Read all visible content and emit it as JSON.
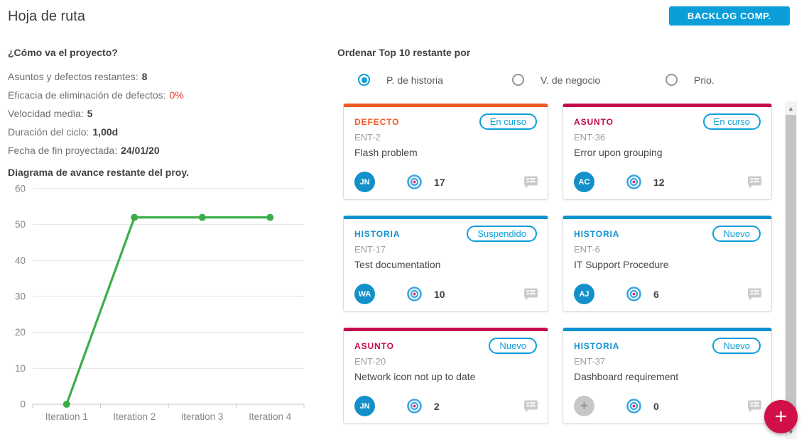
{
  "page": {
    "title": "Hoja de ruta"
  },
  "header": {
    "backlog_button": "BACKLOG COMP."
  },
  "status_panel": {
    "heading": "¿Cómo va el proyecto?",
    "stats": [
      {
        "label": "Asuntos y defectos restantes:",
        "value": "8",
        "warning": false
      },
      {
        "label": "Eficacia de eliminación de defectos:",
        "value": "0%",
        "warning": true
      },
      {
        "label": "Velocidad media:",
        "value": "5",
        "warning": false
      },
      {
        "label": "Duración del ciclo:",
        "value": "1,00d",
        "warning": false
      },
      {
        "label": "Fecha de fin proyectada:",
        "value": "24/01/20",
        "warning": false
      }
    ]
  },
  "chart_data": {
    "type": "line",
    "title": "Diagrama de avance restante del proy.",
    "categories": [
      "Iteration 1",
      "Iteration 2",
      "iteration 3",
      "Iteration 4"
    ],
    "values": [
      0,
      52,
      52,
      52
    ],
    "xlabel": "",
    "ylabel": "",
    "ylim": [
      0,
      60
    ],
    "ytick_step": 10,
    "grid": true,
    "legend": false,
    "line_color": "#3aae49",
    "marker": "circle"
  },
  "sort_panel": {
    "heading": "Ordenar Top 10 restante por",
    "options": [
      {
        "label": "P. de historia",
        "selected": true
      },
      {
        "label": "V. de negocio",
        "selected": false
      },
      {
        "label": "Prio.",
        "selected": false
      }
    ]
  },
  "cards": [
    {
      "type": "DEFECTO",
      "type_color": "#f05a28",
      "key": "ENT-2",
      "title": "Flash problem",
      "status": "En curso",
      "avatar": "JN",
      "avatar_type": "user",
      "points": "17"
    },
    {
      "type": "ASUNTO",
      "type_color": "#c50b50",
      "key": "ENT-36",
      "title": "Error upon grouping",
      "status": "En curso",
      "avatar": "AC",
      "avatar_type": "user",
      "points": "12"
    },
    {
      "type": "HISTORIA",
      "type_color": "#1191cd",
      "key": "ENT-17",
      "title": "Test documentation",
      "status": "Suspendido",
      "avatar": "WA",
      "avatar_type": "user",
      "points": "10"
    },
    {
      "type": "HISTORIA",
      "type_color": "#1191cd",
      "key": "ENT-6",
      "title": "IT Support Procedure",
      "status": "Nuevo",
      "avatar": "AJ",
      "avatar_type": "user",
      "points": "6"
    },
    {
      "type": "ASUNTO",
      "type_color": "#c50b50",
      "key": "ENT-20",
      "title": "Network icon not up to date",
      "status": "Nuevo",
      "avatar": "JN",
      "avatar_type": "user",
      "points": "2"
    },
    {
      "type": "HISTORIA",
      "type_color": "#1191cd",
      "key": "ENT-37",
      "title": "Dashboard requirement",
      "status": "Nuevo",
      "avatar": "+",
      "avatar_type": "unassigned",
      "points": "0"
    }
  ],
  "fab": {
    "label": "+"
  },
  "scrollbar": {
    "up_glyph": "▲",
    "down_glyph": "▼"
  },
  "colors": {
    "accent_blue": "#0c9ed9",
    "defect_orange": "#f05a28",
    "issue_crimson": "#c50b50",
    "story_blue": "#1191cd",
    "line_green": "#3aae49",
    "fab_red": "#d11049",
    "warning_red": "#e8402a"
  }
}
